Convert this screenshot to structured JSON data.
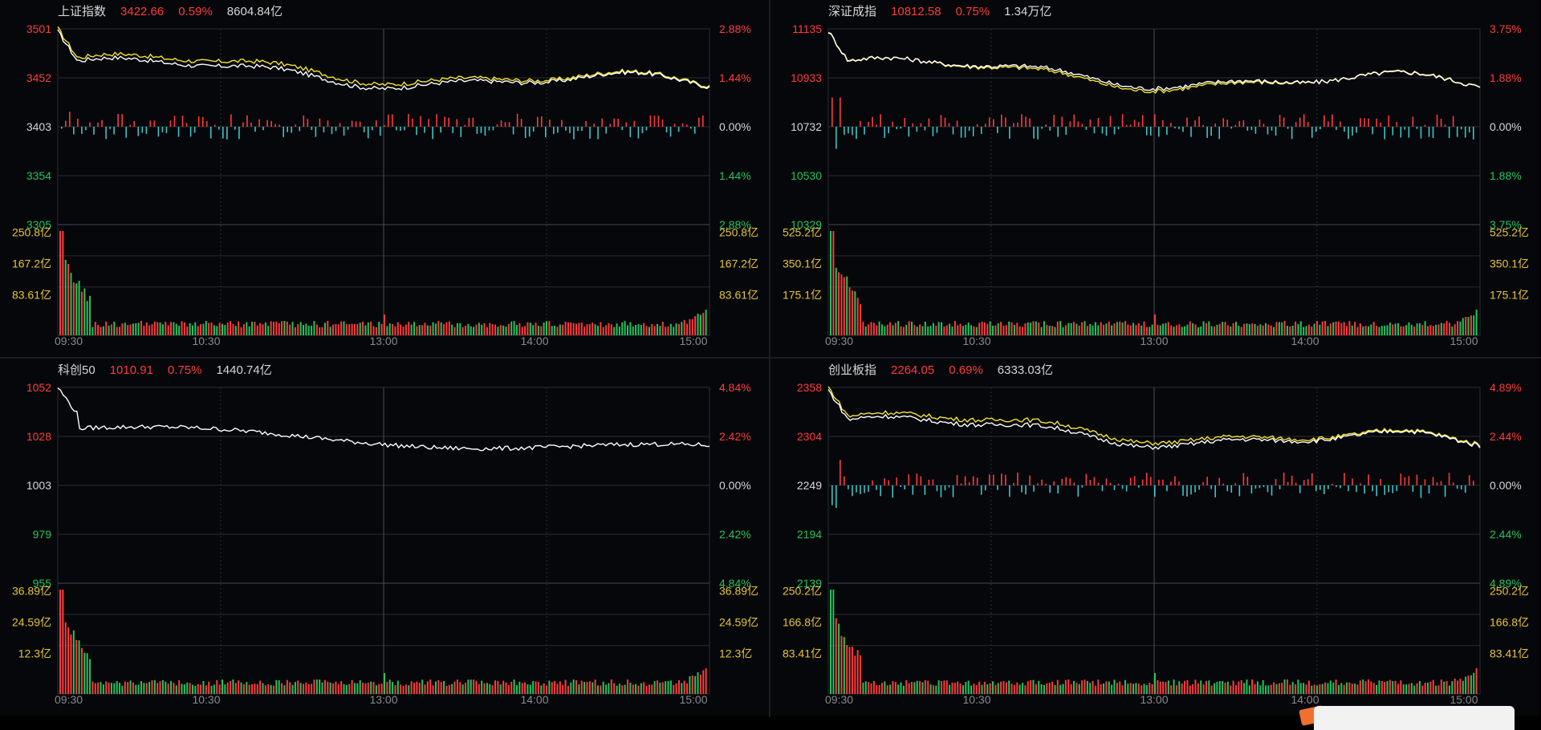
{
  "colors": {
    "bg": "#06070b",
    "grid": "#2b2d33",
    "up": "#ff3b3b",
    "down": "#22c55e",
    "price_line": "#ffffff",
    "avg_line": "#f5e52a",
    "volume_label": "#e8c532",
    "neutral": "#d6d6d6",
    "breadth_down": "#3cc6c8"
  },
  "time_labels": [
    "09:30",
    "10:30",
    "13:00",
    "14:00",
    "15:00"
  ],
  "panels": [
    {
      "id": "sh",
      "name": "上证指数",
      "price": "3422.66",
      "change_pct": "0.59%",
      "turnover": "8604.84亿",
      "price_left": [
        "3501",
        "3452",
        "3403",
        "3354",
        "3305"
      ],
      "price_right": [
        "2.88%",
        "1.44%",
        "0.00%",
        "1.44%",
        "2.88%"
      ],
      "vol_left": [
        "250.8亿",
        "167.2亿",
        "83.61亿"
      ],
      "vol_right": [
        "250.8亿",
        "167.2亿",
        "83.61亿"
      ],
      "has_avg_line": true,
      "has_breadth": true
    },
    {
      "id": "sz",
      "name": "深证成指",
      "price": "10812.58",
      "change_pct": "0.75%",
      "turnover": "1.34万亿",
      "price_left": [
        "11135",
        "10933",
        "10732",
        "10530",
        "10329"
      ],
      "price_right": [
        "3.75%",
        "1.88%",
        "0.00%",
        "1.88%",
        "3.75%"
      ],
      "vol_left": [
        "525.2亿",
        "350.1亿",
        "175.1亿"
      ],
      "vol_right": [
        "525.2亿",
        "350.1亿",
        "175.1亿"
      ],
      "has_avg_line": true,
      "has_breadth": true
    },
    {
      "id": "kc50",
      "name": "科创50",
      "price": "1010.91",
      "change_pct": "0.75%",
      "turnover": "1440.74亿",
      "price_left": [
        "1052",
        "1028",
        "1003",
        "979",
        "955"
      ],
      "price_right": [
        "4.84%",
        "2.42%",
        "0.00%",
        "2.42%",
        "4.84%"
      ],
      "vol_left": [
        "36.89亿",
        "24.59亿",
        "12.3亿"
      ],
      "vol_right": [
        "36.89亿",
        "24.59亿",
        "12.3亿"
      ],
      "has_avg_line": false,
      "has_breadth": false
    },
    {
      "id": "cyb",
      "name": "创业板指",
      "price": "2264.05",
      "change_pct": "0.69%",
      "turnover": "6333.03亿",
      "price_left": [
        "2358",
        "2304",
        "2249",
        "2194",
        "2139"
      ],
      "price_right": [
        "4.89%",
        "2.44%",
        "0.00%",
        "2.44%",
        "4.89%"
      ],
      "vol_left": [
        "250.2亿",
        "166.8亿",
        "83.41亿"
      ],
      "vol_right": [
        "250.2亿",
        "166.8亿",
        "83.41亿"
      ],
      "has_avg_line": true,
      "has_breadth": true
    }
  ]
}
